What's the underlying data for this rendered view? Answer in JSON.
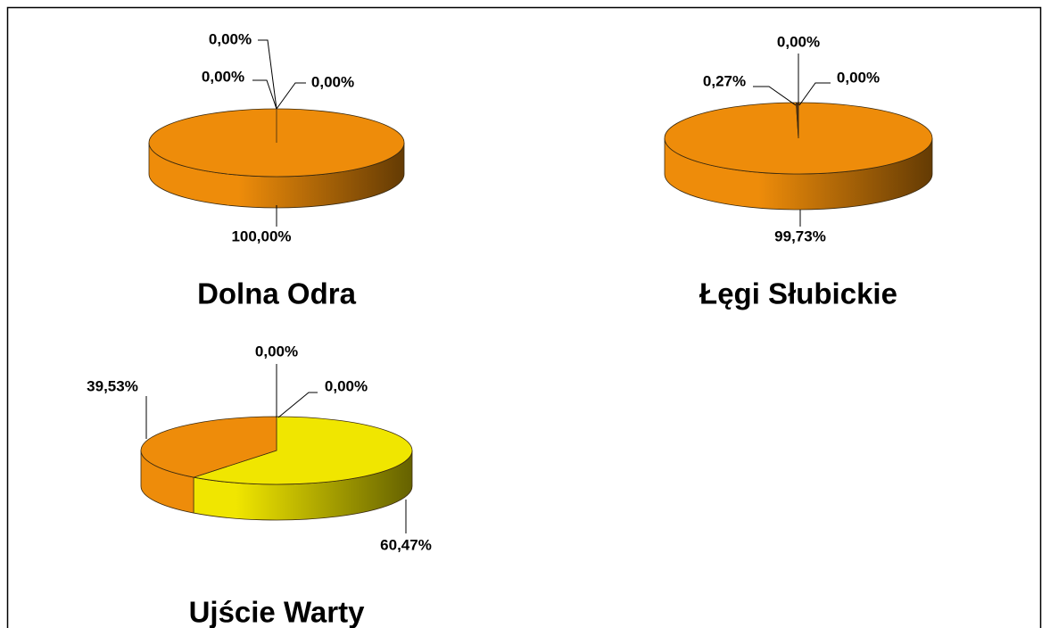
{
  "chart_data": [
    {
      "type": "pie",
      "title": "Dolna Odra",
      "values": [
        0,
        0,
        100,
        0
      ],
      "value_labels": [
        "0,00%",
        "0,00%",
        "100,00%",
        "0,00%"
      ],
      "colors": [
        "#4f81bd",
        "#9bbb59",
        "#ee8c0a",
        "#c0504d"
      ]
    },
    {
      "type": "pie",
      "title": "Łęgi Słubickie",
      "values": [
        0,
        0,
        99.73,
        0.27
      ],
      "value_labels": [
        "0,00%",
        "0,00%",
        "99,73%",
        "0,27%"
      ],
      "colors": [
        "#4f81bd",
        "#9bbb59",
        "#ee8c0a",
        "#5a3412"
      ]
    },
    {
      "type": "pie",
      "title": "Ujście Warty",
      "values": [
        0,
        0,
        60.47,
        39.53
      ],
      "value_labels": [
        "0,00%",
        "0,00%",
        "60,47%",
        "39,53%"
      ],
      "colors": [
        "#4f81bd",
        "#9bbb59",
        "#f0e600",
        "#ee8c0a"
      ]
    }
  ]
}
